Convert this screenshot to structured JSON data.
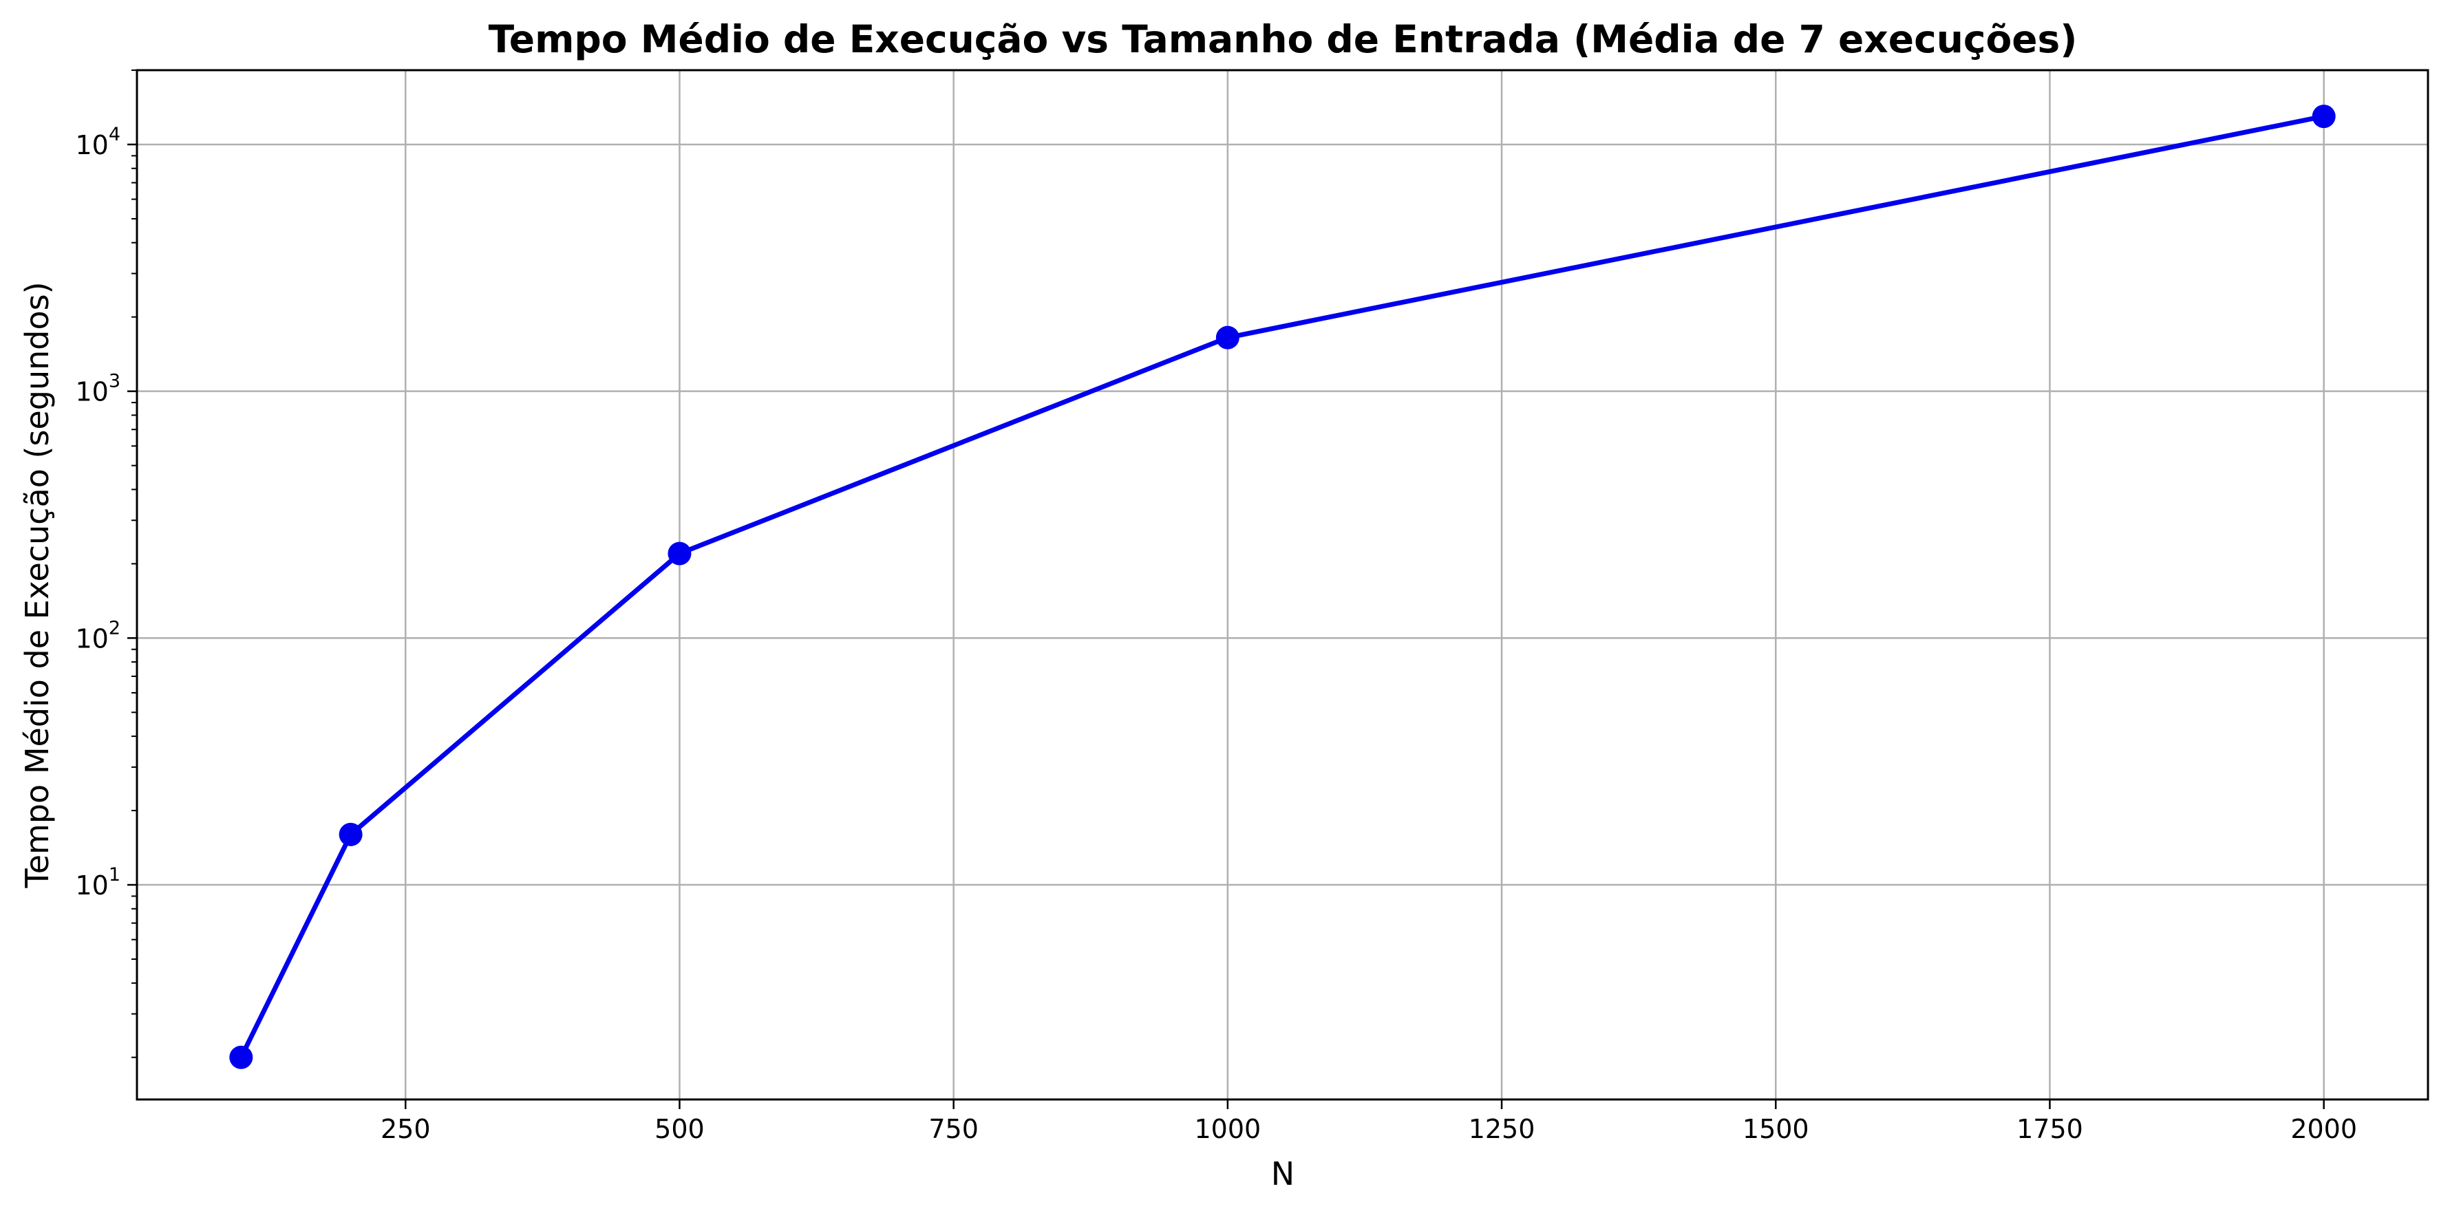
{
  "chart_data": {
    "type": "line",
    "title": "Tempo Médio de Execução vs Tamanho de Entrada (Média de 7 execuções)",
    "xlabel": "N",
    "ylabel": "Tempo Médio de Execução (segundos)",
    "x": [
      100,
      200,
      500,
      1000,
      2000
    ],
    "series": [
      {
        "values": [
          2.0,
          16.0,
          220,
          1650,
          13000
        ]
      }
    ],
    "xlim": [
      5,
      2095
    ],
    "ylim": [
      1.35,
      20000
    ],
    "yscale": "log",
    "x_ticks": [
      {
        "value": 250,
        "label": "250"
      },
      {
        "value": 500,
        "label": "500"
      },
      {
        "value": 750,
        "label": "750"
      },
      {
        "value": 1000,
        "label": "1000"
      },
      {
        "value": 1250,
        "label": "1250"
      },
      {
        "value": 1500,
        "label": "1500"
      },
      {
        "value": 1750,
        "label": "1750"
      },
      {
        "value": 2000,
        "label": "2000"
      }
    ],
    "y_ticks": [
      {
        "value": 10,
        "base": "10",
        "exp": "1"
      },
      {
        "value": 100,
        "base": "10",
        "exp": "2"
      },
      {
        "value": 1000,
        "base": "10",
        "exp": "3"
      },
      {
        "value": 10000,
        "base": "10",
        "exp": "4"
      }
    ],
    "grid": true,
    "line_color": "#0000ee",
    "marker": "circle"
  }
}
